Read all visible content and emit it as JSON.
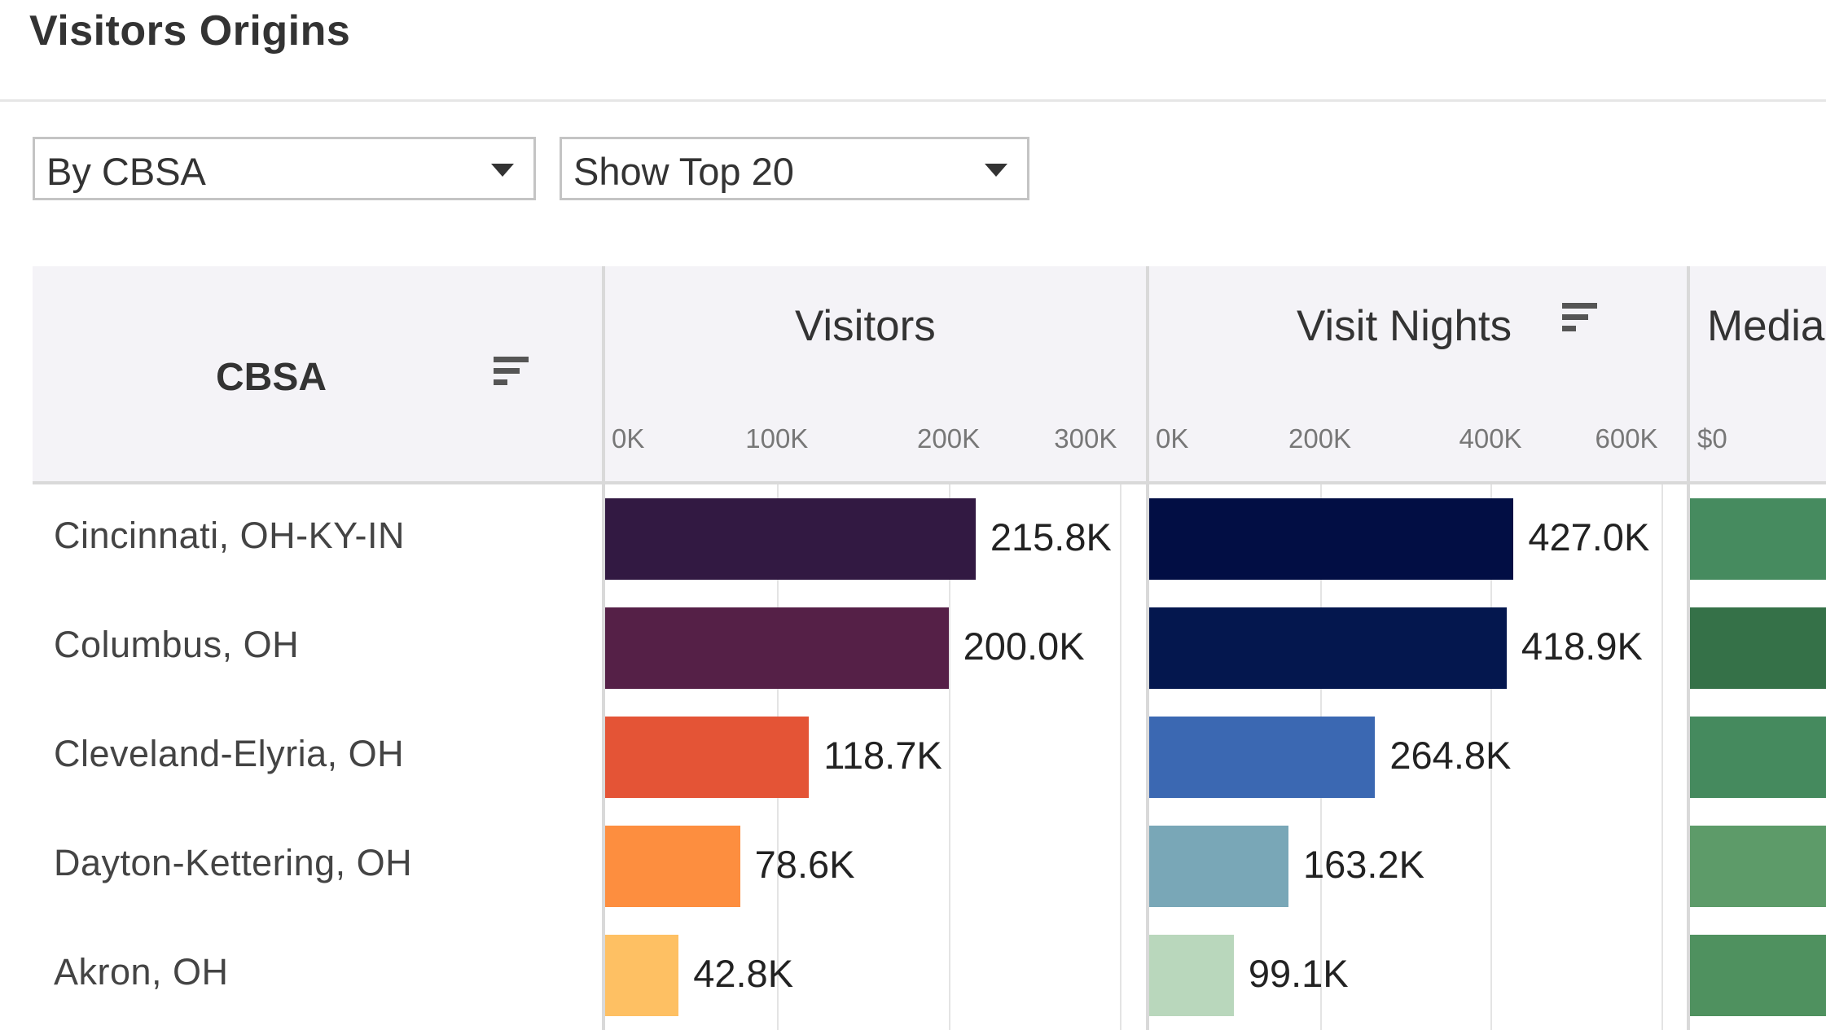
{
  "title": "Visitors Origins",
  "controls": {
    "group_by": "By CBSA",
    "top_n": "Show Top 20"
  },
  "table": {
    "row_header": "CBSA",
    "columns": [
      {
        "header": "Visitors",
        "sorted": false,
        "ticks": [
          "0K",
          "100K",
          "200K",
          "300K"
        ],
        "tick_values": [
          0,
          100000,
          200000,
          300000
        ],
        "xlim": [
          0,
          315000
        ]
      },
      {
        "header": "Visit Nights",
        "sorted": true,
        "ticks": [
          "0K",
          "200K",
          "400K",
          "600K"
        ],
        "tick_values": [
          0,
          200000,
          400000,
          600000
        ],
        "xlim": [
          0,
          630000
        ]
      },
      {
        "header": "Media",
        "ticks": [
          "$0"
        ]
      }
    ]
  },
  "colors": {
    "visitors": [
      "#321942",
      "#552047",
      "#e45436",
      "#fd8e3f",
      "#fec063"
    ],
    "visit_nights": [
      "#020e44",
      "#04174e",
      "#3b68b2",
      "#79a7b7",
      "#b9d7bc"
    ],
    "media": [
      "#468b5f",
      "#357148",
      "#458a5e",
      "#5d9b69",
      "#4f915f"
    ]
  },
  "chart_data": {
    "type": "bar",
    "categories": [
      "Cincinnati, OH-KY-IN",
      "Columbus, OH",
      "Cleveland-Elyria, OH",
      "Dayton-Kettering, OH",
      "Akron, OH"
    ],
    "series": [
      {
        "name": "Visitors",
        "values": [
          215800,
          200000,
          118700,
          78600,
          42800
        ],
        "labels": [
          "215.8K",
          "200.0K",
          "118.7K",
          "78.6K",
          "42.8K"
        ]
      },
      {
        "name": "Visit Nights",
        "values": [
          427000,
          418900,
          264800,
          163200,
          99100
        ],
        "labels": [
          "427.0K",
          "418.9K",
          "264.8K",
          "163.2K",
          "99.1K"
        ]
      }
    ],
    "orientation": "horizontal",
    "grid": true
  }
}
